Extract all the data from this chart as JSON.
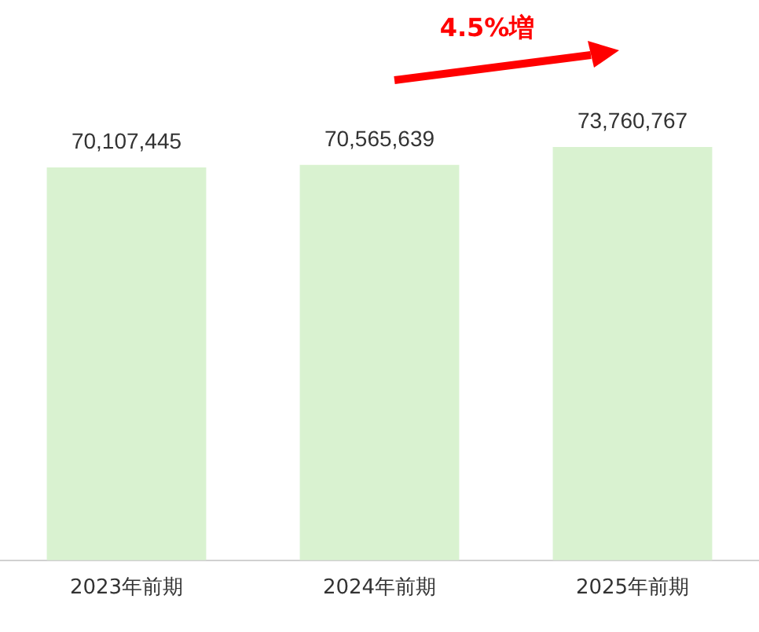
{
  "chart_data": {
    "type": "bar",
    "categories": [
      "2023年前期",
      "2024年前期",
      "2025年前期"
    ],
    "values": [
      70107445,
      70565639,
      73760767
    ],
    "value_labels": [
      "70,107,445",
      "70,565,639",
      "73,760,767"
    ],
    "color": "#d9f2d0",
    "tick_labels": "x",
    "grid": false,
    "legend": false,
    "annotations": [
      "4.5%増"
    ]
  }
}
